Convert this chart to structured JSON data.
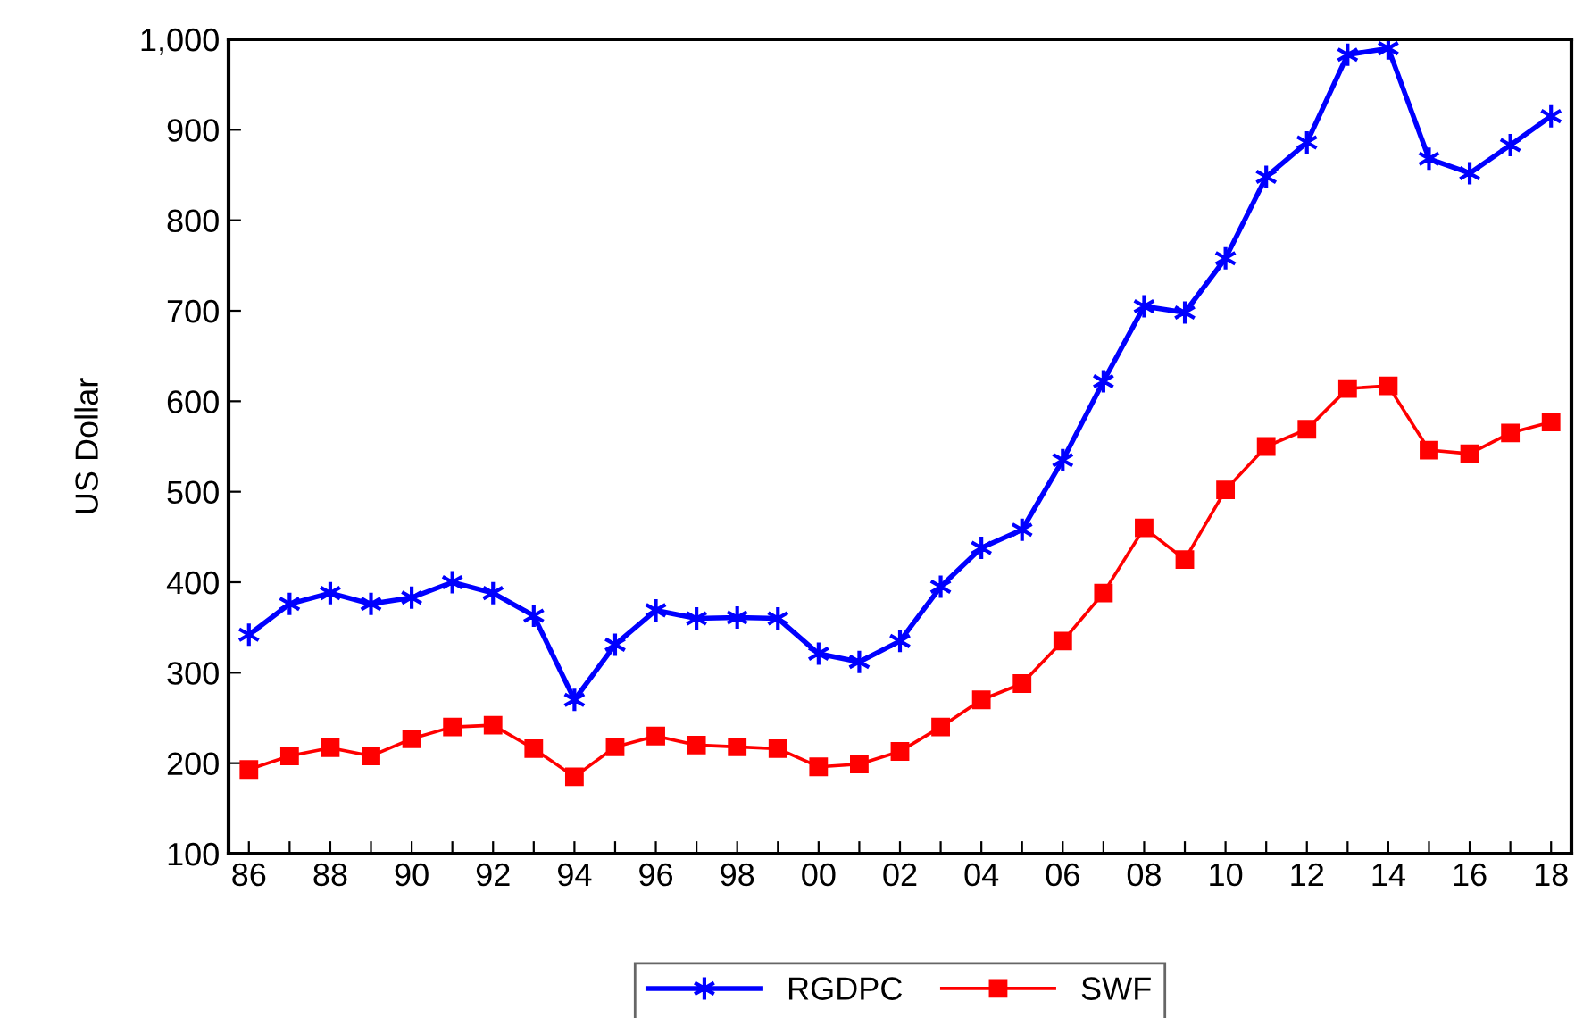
{
  "chart_data": {
    "type": "line",
    "ylabel": "US Dollar",
    "x": [
      1986,
      1987,
      1988,
      1989,
      1990,
      1991,
      1992,
      1993,
      1994,
      1995,
      1996,
      1997,
      1998,
      1999,
      2000,
      2001,
      2002,
      2003,
      2004,
      2005,
      2006,
      2007,
      2008,
      2009,
      2010,
      2011,
      2012,
      2013,
      2014,
      2015,
      2016,
      2017,
      2018
    ],
    "series": [
      {
        "name": "RGDPC",
        "color": "#0000ff",
        "marker": "cross",
        "values": [
          342,
          376,
          388,
          376,
          383,
          400,
          388,
          363,
          270,
          331,
          369,
          360,
          361,
          360,
          321,
          312,
          335,
          395,
          438,
          458,
          535,
          622,
          705,
          698,
          758,
          848,
          886,
          983,
          990,
          868,
          852,
          883,
          915
        ]
      },
      {
        "name": "SWF",
        "color": "#ff0000",
        "marker": "square",
        "values": [
          193,
          208,
          217,
          208,
          227,
          240,
          242,
          216,
          185,
          218,
          230,
          220,
          218,
          216,
          196,
          199,
          213,
          240,
          270,
          288,
          335,
          388,
          460,
          425,
          502,
          550,
          569,
          614,
          617,
          546,
          542,
          565,
          577
        ]
      }
    ],
    "xlim": [
      1985.5,
      2018.5
    ],
    "xticks": [
      {
        "value": 1986,
        "label": "86"
      },
      {
        "value": 1987,
        "label": null
      },
      {
        "value": 1988,
        "label": "88"
      },
      {
        "value": 1989,
        "label": null
      },
      {
        "value": 1990,
        "label": "90"
      },
      {
        "value": 1991,
        "label": null
      },
      {
        "value": 1992,
        "label": "92"
      },
      {
        "value": 1993,
        "label": null
      },
      {
        "value": 1994,
        "label": "94"
      },
      {
        "value": 1995,
        "label": null
      },
      {
        "value": 1996,
        "label": "96"
      },
      {
        "value": 1997,
        "label": null
      },
      {
        "value": 1998,
        "label": "98"
      },
      {
        "value": 1999,
        "label": null
      },
      {
        "value": 2000,
        "label": "00"
      },
      {
        "value": 2001,
        "label": null
      },
      {
        "value": 2002,
        "label": "02"
      },
      {
        "value": 2003,
        "label": null
      },
      {
        "value": 2004,
        "label": "04"
      },
      {
        "value": 2005,
        "label": null
      },
      {
        "value": 2006,
        "label": "06"
      },
      {
        "value": 2007,
        "label": null
      },
      {
        "value": 2008,
        "label": "08"
      },
      {
        "value": 2009,
        "label": null
      },
      {
        "value": 2010,
        "label": "10"
      },
      {
        "value": 2011,
        "label": null
      },
      {
        "value": 2012,
        "label": "12"
      },
      {
        "value": 2013,
        "label": null
      },
      {
        "value": 2014,
        "label": "14"
      },
      {
        "value": 2015,
        "label": null
      },
      {
        "value": 2016,
        "label": "16"
      },
      {
        "value": 2017,
        "label": null
      },
      {
        "value": 2018,
        "label": "18"
      }
    ],
    "ylim": [
      100,
      1000
    ],
    "yticks": [
      100,
      200,
      300,
      400,
      500,
      600,
      700,
      800,
      900,
      {
        "value": 1000,
        "label": "1,000"
      }
    ],
    "grid": false,
    "legend": "bottom",
    "line_style": "solid"
  }
}
